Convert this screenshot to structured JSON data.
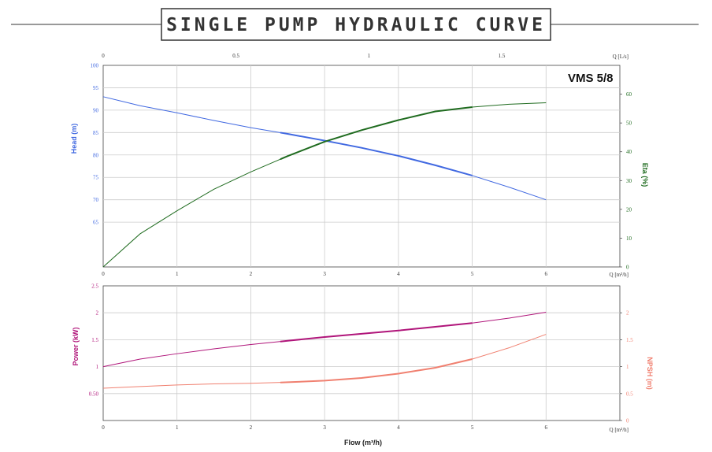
{
  "header": {
    "title": "SINGLE PUMP HYDRAULIC CURVE"
  },
  "colors": {
    "head": "#4169e1",
    "eta": "#1f6b1f",
    "power": "#b0157a",
    "npsh": "#f08070",
    "grid": "#cccccc",
    "frame": "#444444"
  },
  "chart_data": [
    {
      "type": "line",
      "model_label": "VMS 5/8",
      "x_ticks": [
        "0",
        "1",
        "2",
        "3",
        "4",
        "5",
        "6"
      ],
      "x_unit_label": "Q [m³/h]",
      "top_ticks": [
        "0",
        "0.5",
        "1",
        "1.5"
      ],
      "top_unit_label": "Q [L/s]",
      "ylabel_left": "Head (m)",
      "ylim_left": [
        55,
        100
      ],
      "yticks_left": [
        "100",
        "95",
        "90",
        "85",
        "80",
        "75",
        "70",
        "65"
      ],
      "ylabel_right": "Eta (%)",
      "ylim_right": [
        0,
        70
      ],
      "yticks_right": [
        "60",
        "50",
        "40",
        "30",
        "20",
        "10",
        "0"
      ],
      "xlim": [
        0,
        7
      ],
      "series": [
        {
          "name": "Head (m)",
          "axis": "left",
          "x": [
            0,
            0.5,
            1,
            1.5,
            2,
            2.5,
            3,
            3.5,
            4,
            4.5,
            5,
            5.5,
            6
          ],
          "y": [
            93,
            91,
            89.4,
            87.7,
            86.1,
            84.7,
            83.2,
            81.6,
            79.8,
            77.7,
            75.4,
            72.8,
            70
          ],
          "bold_from": 2.4,
          "bold_to": 5
        },
        {
          "name": "Eta (%)",
          "axis": "right",
          "x": [
            0,
            0.5,
            1,
            1.5,
            2,
            2.5,
            3,
            3.5,
            4,
            4.5,
            5,
            5.5,
            6
          ],
          "y": [
            0,
            11.5,
            19.5,
            27,
            33,
            38.5,
            43.5,
            47.5,
            51,
            54,
            55.5,
            56.5,
            57
          ],
          "bold_from": 2.4,
          "bold_to": 5
        }
      ]
    },
    {
      "type": "line",
      "x_ticks": [
        "0",
        "1",
        "2",
        "3",
        "4",
        "5",
        "6"
      ],
      "x_unit_label": "Q [m³/h]",
      "xlabel": "Flow (m³/h)",
      "ylabel_left": "Power (kW)",
      "ylim_left": [
        0,
        2.5
      ],
      "yticks_left": [
        "2.5",
        "2",
        "1.5",
        "1",
        "0.50"
      ],
      "ylabel_right": "NPSH (m)",
      "ylim_right": [
        0,
        2.5
      ],
      "yticks_right": [
        "2",
        "1.5",
        "1",
        "0.5",
        "0"
      ],
      "xlim": [
        0,
        7
      ],
      "series": [
        {
          "name": "Power (kW)",
          "axis": "left",
          "x": [
            0,
            0.5,
            1,
            1.5,
            2,
            2.5,
            3,
            3.5,
            4,
            4.5,
            5,
            5.5,
            6
          ],
          "y": [
            1.0,
            1.14,
            1.24,
            1.33,
            1.41,
            1.48,
            1.55,
            1.61,
            1.67,
            1.74,
            1.81,
            1.9,
            2.01
          ],
          "bold_from": 2.4,
          "bold_to": 5
        },
        {
          "name": "NPSH (m)",
          "axis": "right",
          "x": [
            0,
            0.5,
            1,
            1.5,
            2,
            2.5,
            3,
            3.5,
            4,
            4.5,
            5,
            5.5,
            6
          ],
          "y": [
            0.6,
            0.63,
            0.66,
            0.68,
            0.69,
            0.71,
            0.74,
            0.79,
            0.87,
            0.98,
            1.14,
            1.35,
            1.6
          ],
          "bold_from": 2.4,
          "bold_to": 5
        }
      ]
    }
  ]
}
